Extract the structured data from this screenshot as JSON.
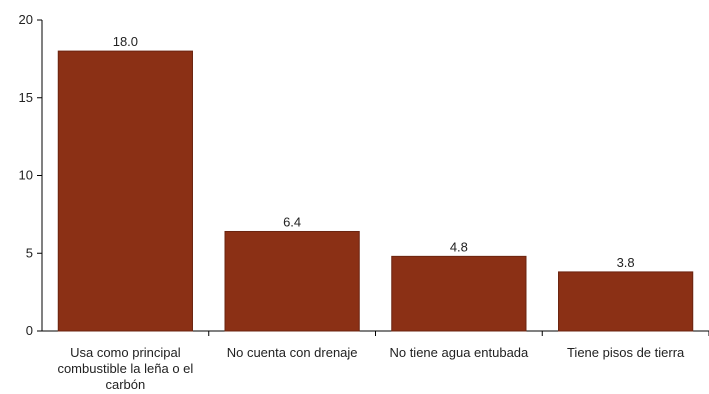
{
  "chart_data": {
    "type": "bar",
    "title": "",
    "xlabel": "",
    "ylabel": "",
    "categories": [
      "Usa como principal combustible la leña o el carbón",
      "No cuenta con drenaje",
      "No tiene agua entubada",
      "Tiene pisos de tierra"
    ],
    "category_lines": [
      [
        "Usa como principal",
        "combustible la leña o el",
        "carbón"
      ],
      [
        "No cuenta con drenaje"
      ],
      [
        "No tiene agua entubada"
      ],
      [
        "Tiene pisos de tierra"
      ]
    ],
    "values": [
      18.0,
      6.4,
      4.8,
      3.8
    ],
    "value_labels": [
      "18.0",
      "6.4",
      "4.8",
      "3.8"
    ],
    "ylim": [
      0,
      20
    ],
    "yticks": [
      0,
      5,
      10,
      15,
      20
    ],
    "ytick_labels": [
      "0",
      "5",
      "10",
      "15",
      "20"
    ],
    "grid": false,
    "legend": "none",
    "bar_color": "#8b3015",
    "bar_edge_color": "#6b2410",
    "axis_color": "#000000"
  }
}
